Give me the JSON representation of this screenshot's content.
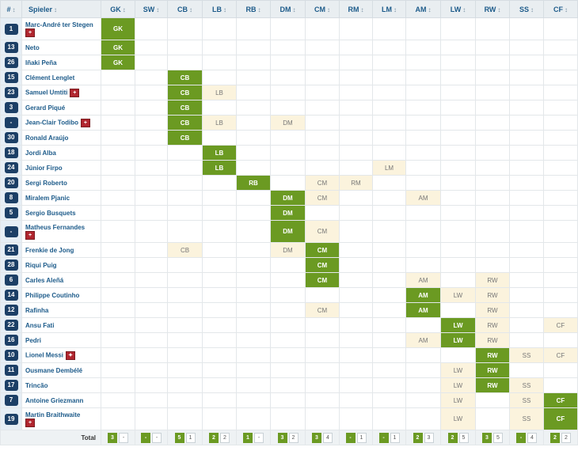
{
  "columns": [
    "#",
    "Spieler",
    "GK",
    "SW",
    "CB",
    "LB",
    "RB",
    "DM",
    "CM",
    "RM",
    "LM",
    "AM",
    "LW",
    "RW",
    "SS",
    "CF"
  ],
  "players": [
    {
      "number": "1",
      "name": "Marc-André ter Stegen",
      "flag": true,
      "flag_row": true,
      "main": "GK",
      "secondary": []
    },
    {
      "number": "13",
      "name": "Neto",
      "flag": false,
      "main": "GK",
      "secondary": []
    },
    {
      "number": "26",
      "name": "Iñaki Peña",
      "flag": false,
      "main": "GK",
      "secondary": []
    },
    {
      "number": "15",
      "name": "Clément Lenglet",
      "flag": false,
      "main": "CB",
      "secondary": []
    },
    {
      "number": "23",
      "name": "Samuel Umtiti",
      "flag": true,
      "main": "CB",
      "secondary": [
        "LB"
      ]
    },
    {
      "number": "3",
      "name": "Gerard Piqué",
      "flag": false,
      "main": "CB",
      "secondary": []
    },
    {
      "number": "-",
      "name": "Jean-Clair Todibo",
      "flag": true,
      "main": "CB",
      "secondary": [
        "LB",
        "DM"
      ]
    },
    {
      "number": "30",
      "name": "Ronald Araújo",
      "flag": false,
      "main": "CB",
      "secondary": []
    },
    {
      "number": "18",
      "name": "Jordi Alba",
      "flag": false,
      "main": "LB",
      "secondary": []
    },
    {
      "number": "24",
      "name": "Júnior Firpo",
      "flag": false,
      "main": "LB",
      "secondary": [
        "LM"
      ]
    },
    {
      "number": "20",
      "name": "Sergi Roberto",
      "flag": false,
      "main": "RB",
      "secondary": [
        "CM",
        "RM"
      ]
    },
    {
      "number": "8",
      "name": "Miralem Pjanic",
      "flag": false,
      "main": "DM",
      "secondary": [
        "CM",
        "AM"
      ]
    },
    {
      "number": "5",
      "name": "Sergio Busquets",
      "flag": false,
      "main": "DM",
      "secondary": []
    },
    {
      "number": "-",
      "name": "Matheus Fernandes",
      "flag": true,
      "flag_row": true,
      "main": "DM",
      "secondary": [
        "CM"
      ]
    },
    {
      "number": "21",
      "name": "Frenkie de Jong",
      "flag": false,
      "main": "CM",
      "secondary": [
        "CB",
        "DM"
      ]
    },
    {
      "number": "28",
      "name": "Riqui Puig",
      "flag": false,
      "main": "CM",
      "secondary": []
    },
    {
      "number": "6",
      "name": "Carles Aleñá",
      "flag": false,
      "main": "CM",
      "secondary": [
        "AM",
        "RW"
      ]
    },
    {
      "number": "14",
      "name": "Philippe Coutinho",
      "flag": false,
      "main": "AM",
      "secondary": [
        "LW",
        "RW"
      ]
    },
    {
      "number": "12",
      "name": "Rafinha",
      "flag": false,
      "main": "AM",
      "secondary": [
        "CM",
        "RW"
      ]
    },
    {
      "number": "22",
      "name": "Ansu Fati",
      "flag": false,
      "main": "LW",
      "secondary": [
        "RW",
        "CF"
      ]
    },
    {
      "number": "16",
      "name": "Pedri",
      "flag": false,
      "main": "LW",
      "secondary": [
        "AM",
        "RW"
      ]
    },
    {
      "number": "10",
      "name": "Lionel Messi",
      "flag": true,
      "flag_type": "captain",
      "main": "RW",
      "secondary": [
        "SS",
        "CF"
      ]
    },
    {
      "number": "11",
      "name": "Ousmane Dembélé",
      "flag": false,
      "main": "RW",
      "secondary": [
        "LW"
      ]
    },
    {
      "number": "17",
      "name": "Trincão",
      "flag": false,
      "main": "RW",
      "secondary": [
        "LW",
        "SS"
      ]
    },
    {
      "number": "7",
      "name": "Antoine Griezmann",
      "flag": false,
      "main": "CF",
      "secondary": [
        "LW",
        "SS"
      ]
    },
    {
      "number": "19",
      "name": "Martin Braithwaite",
      "flag": true,
      "flag_row": true,
      "main": "CF",
      "secondary": [
        "LW",
        "SS"
      ]
    }
  ],
  "totals": {
    "label": "Total",
    "values": [
      [
        "3",
        "-"
      ],
      [
        "-",
        "-"
      ],
      [
        "5",
        "1"
      ],
      [
        "2",
        "2"
      ],
      [
        "1",
        "-"
      ],
      [
        "3",
        "2"
      ],
      [
        "3",
        "4"
      ],
      [
        "-",
        "1"
      ],
      [
        "-",
        "1"
      ],
      [
        "2",
        "3"
      ],
      [
        "2",
        "5"
      ],
      [
        "3",
        "5"
      ],
      [
        "-",
        "4"
      ],
      [
        "2",
        "2"
      ]
    ]
  },
  "colors": {
    "main": "#6b9a22",
    "secondary": "#fbf3dd",
    "badge": "#1c3f66",
    "header": "#e9eef1"
  }
}
